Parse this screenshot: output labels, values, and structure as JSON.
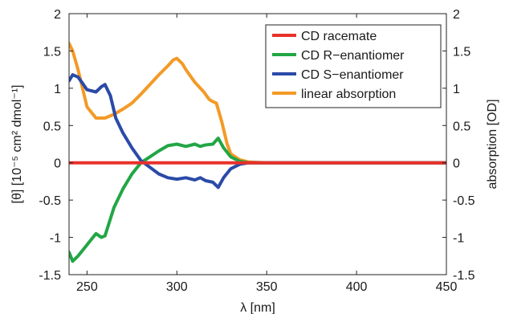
{
  "chart_data": {
    "type": "line",
    "xlabel": "λ [nm]",
    "ylabel_left": "[θ] [10⁻⁵ cm² dmol⁻¹]",
    "ylabel_right": "absorption [OD]",
    "xlim": [
      240,
      450
    ],
    "ylim_left": [
      -1.5,
      2
    ],
    "ylim_right": [
      -1.5,
      2
    ],
    "x_ticks": [
      "250",
      "300",
      "350",
      "400",
      "450"
    ],
    "y_ticks_left": [
      "-1.5",
      "-1",
      "-0.5",
      "0",
      "0.5",
      "1",
      "1.5",
      "2"
    ],
    "y_ticks_right": [
      "-1.5",
      "-1",
      "-0.5",
      "0",
      "0.5",
      "1",
      "1.5",
      "2"
    ],
    "grid": false,
    "legend_position": "top-right",
    "series": [
      {
        "name": "CD racemate",
        "color": "#e8312a",
        "x": [
          240,
          280,
          320,
          340,
          360,
          400,
          450
        ],
        "y": [
          0,
          0,
          0,
          0,
          0,
          0,
          0
        ]
      },
      {
        "name": "CD R−enantiomer",
        "color": "#22a645",
        "x": [
          240,
          242,
          245,
          250,
          255,
          258,
          260,
          265,
          270,
          275,
          280,
          285,
          290,
          295,
          300,
          305,
          310,
          313,
          316,
          320,
          323,
          326,
          330,
          335,
          340,
          350,
          360,
          400,
          450
        ],
        "y": [
          -1.2,
          -1.32,
          -1.25,
          -1.1,
          -0.95,
          -1.0,
          -0.98,
          -0.6,
          -0.35,
          -0.15,
          0.0,
          0.08,
          0.16,
          0.23,
          0.25,
          0.22,
          0.25,
          0.22,
          0.24,
          0.25,
          0.33,
          0.2,
          0.08,
          0.02,
          0.0,
          0.0,
          0.0,
          0.0,
          0.0
        ]
      },
      {
        "name": "CD S−enantiomer",
        "color": "#2b4aa8",
        "x": [
          240,
          242,
          245,
          248,
          250,
          255,
          258,
          260,
          263,
          266,
          270,
          275,
          280,
          285,
          290,
          295,
          300,
          305,
          310,
          313,
          316,
          320,
          323,
          326,
          330,
          335,
          340,
          350,
          360,
          400,
          450
        ],
        "y": [
          1.1,
          1.18,
          1.15,
          1.05,
          0.98,
          0.95,
          1.02,
          1.05,
          0.9,
          0.6,
          0.4,
          0.2,
          0.03,
          -0.06,
          -0.15,
          -0.2,
          -0.22,
          -0.2,
          -0.23,
          -0.2,
          -0.24,
          -0.26,
          -0.33,
          -0.2,
          -0.08,
          -0.02,
          0.0,
          0.0,
          0.0,
          0.0,
          0.0
        ]
      },
      {
        "name": "linear absorption",
        "color": "#f39a27",
        "x": [
          240,
          242,
          245,
          248,
          250,
          255,
          260,
          265,
          270,
          275,
          280,
          285,
          290,
          295,
          298,
          300,
          303,
          305,
          310,
          315,
          318,
          320,
          322,
          325,
          328,
          330,
          335,
          340,
          350,
          360,
          400,
          450
        ],
        "y": [
          1.6,
          1.5,
          1.25,
          0.95,
          0.75,
          0.6,
          0.6,
          0.65,
          0.72,
          0.8,
          0.92,
          1.05,
          1.18,
          1.3,
          1.38,
          1.4,
          1.33,
          1.25,
          1.08,
          0.95,
          0.85,
          0.82,
          0.8,
          0.55,
          0.25,
          0.12,
          0.04,
          0.01,
          0.0,
          0.0,
          0.0,
          0.0
        ]
      }
    ]
  }
}
